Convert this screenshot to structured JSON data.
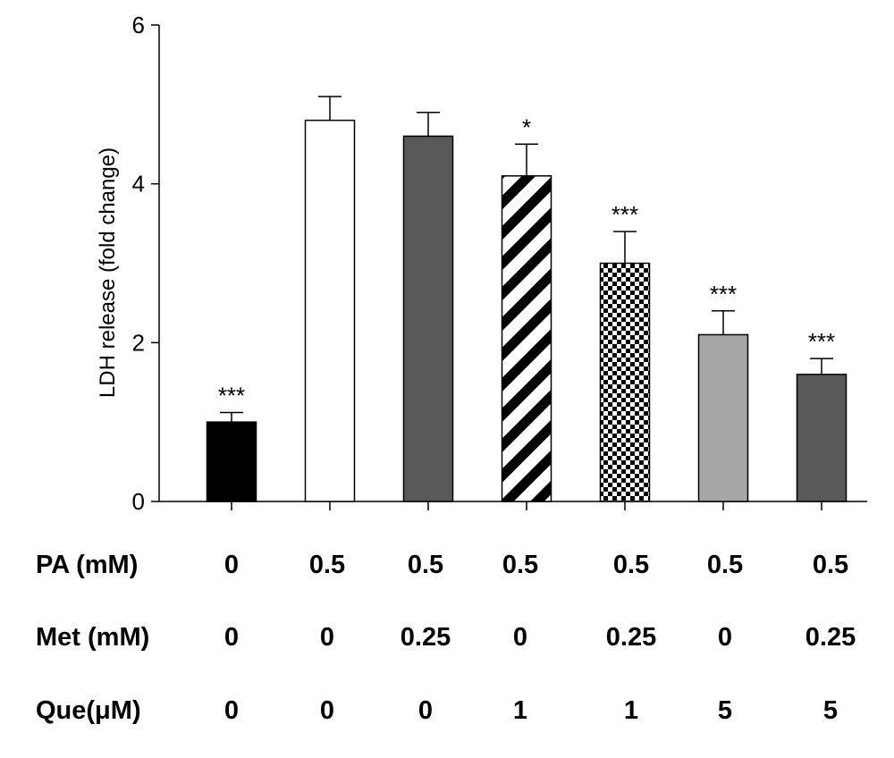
{
  "chart_data": {
    "type": "bar",
    "ylabel": "LDH release (fold change)",
    "ylim": [
      0,
      6
    ],
    "yticks": [
      0,
      2,
      4,
      6
    ],
    "grid": false,
    "bars": [
      {
        "value": 1.0,
        "error": 0.12,
        "sig": "***",
        "fill": "solid-black"
      },
      {
        "value": 4.8,
        "error": 0.3,
        "sig": "",
        "fill": "white"
      },
      {
        "value": 4.6,
        "error": 0.3,
        "sig": "",
        "fill": "dark-gray"
      },
      {
        "value": 4.1,
        "error": 0.4,
        "sig": "*",
        "fill": "diagonal-stripes"
      },
      {
        "value": 3.0,
        "error": 0.4,
        "sig": "***",
        "fill": "checkerboard"
      },
      {
        "value": 2.1,
        "error": 0.3,
        "sig": "***",
        "fill": "light-gray"
      },
      {
        "value": 1.6,
        "error": 0.2,
        "sig": "***",
        "fill": "dark-gray"
      }
    ],
    "treatment_rows": [
      {
        "label": "PA (mM)",
        "values": [
          "0",
          "0.5",
          "0.5",
          "0.5",
          "0.5",
          "0.5",
          "0.5"
        ]
      },
      {
        "label": "Met (mM)",
        "values": [
          "0",
          "0",
          "0.25",
          "0",
          "0.25",
          "0",
          "0.25"
        ]
      },
      {
        "label": "Que(μM)",
        "values": [
          "0",
          "0",
          "0",
          "1",
          "1",
          "5",
          "5"
        ]
      }
    ],
    "colors": {
      "solid-black": "#000000",
      "white": "#ffffff",
      "dark-gray": "#595959",
      "light-gray": "#a6a6a6",
      "stroke": "#000000"
    }
  }
}
